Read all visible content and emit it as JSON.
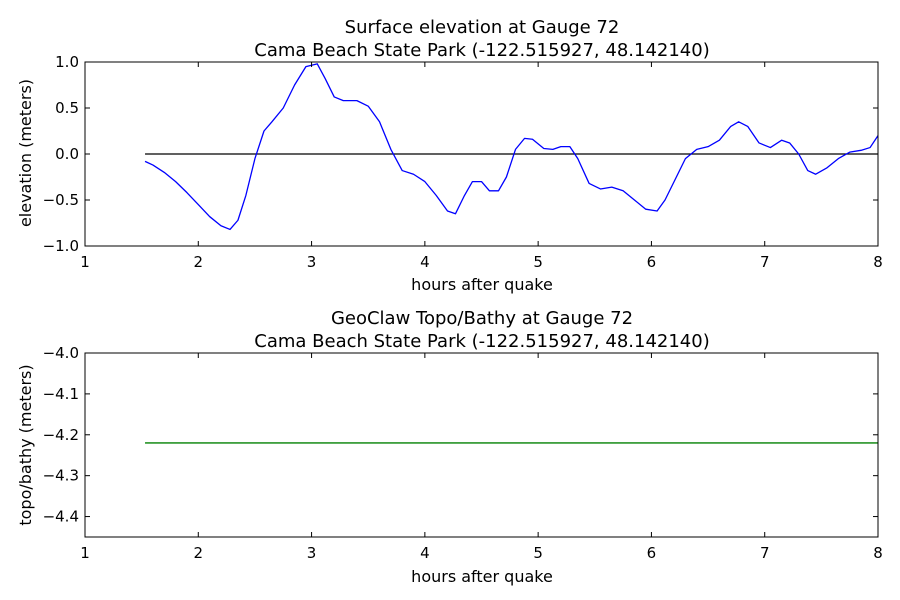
{
  "chart_data": [
    {
      "type": "line",
      "title_line1": "Surface elevation at Gauge 72",
      "title_line2": "Cama Beach State Park  (-122.515927, 48.142140)",
      "xlabel": "hours after quake",
      "ylabel": "elevation (meters)",
      "xlim": [
        1,
        8
      ],
      "ylim": [
        -1.0,
        1.0
      ],
      "xticks": [
        1,
        2,
        3,
        4,
        5,
        6,
        7,
        8
      ],
      "xtick_labels": [
        "1",
        "2",
        "3",
        "4",
        "5",
        "6",
        "7",
        "8"
      ],
      "yticks": [
        -1.0,
        -0.5,
        0.0,
        0.5,
        1.0
      ],
      "ytick_labels": [
        "−1.0",
        "−0.5",
        "0.0",
        "0.5",
        "1.0"
      ],
      "grid": false,
      "reference_line": {
        "y": 0.0,
        "x": [
          1.53,
          8.0
        ],
        "color": "#000000"
      },
      "series": [
        {
          "color": "#0000ff",
          "x": [
            1.53,
            1.6,
            1.7,
            1.8,
            1.9,
            2.0,
            2.1,
            2.2,
            2.28,
            2.35,
            2.42,
            2.5,
            2.58,
            2.65,
            2.75,
            2.85,
            2.95,
            3.05,
            3.12,
            3.2,
            3.28,
            3.4,
            3.5,
            3.6,
            3.7,
            3.8,
            3.9,
            4.0,
            4.1,
            4.2,
            4.27,
            4.35,
            4.42,
            4.5,
            4.57,
            4.65,
            4.72,
            4.8,
            4.88,
            4.95,
            5.05,
            5.13,
            5.2,
            5.28,
            5.35,
            5.45,
            5.55,
            5.65,
            5.75,
            5.85,
            5.95,
            6.05,
            6.12,
            6.2,
            6.3,
            6.4,
            6.5,
            6.6,
            6.7,
            6.77,
            6.85,
            6.95,
            7.05,
            7.15,
            7.22,
            7.3,
            7.38,
            7.45,
            7.55,
            7.65,
            7.75,
            7.85,
            7.93,
            8.0
          ],
          "y": [
            -0.08,
            -0.12,
            -0.2,
            -0.3,
            -0.42,
            -0.55,
            -0.68,
            -0.78,
            -0.82,
            -0.72,
            -0.45,
            -0.05,
            0.25,
            0.35,
            0.5,
            0.75,
            0.95,
            0.98,
            0.82,
            0.62,
            0.58,
            0.58,
            0.52,
            0.35,
            0.05,
            -0.18,
            -0.22,
            -0.3,
            -0.45,
            -0.62,
            -0.65,
            -0.45,
            -0.3,
            -0.3,
            -0.4,
            -0.4,
            -0.25,
            0.05,
            0.17,
            0.16,
            0.06,
            0.05,
            0.08,
            0.08,
            -0.05,
            -0.32,
            -0.38,
            -0.36,
            -0.4,
            -0.5,
            -0.6,
            -0.62,
            -0.5,
            -0.3,
            -0.05,
            0.05,
            0.08,
            0.15,
            0.3,
            0.35,
            0.3,
            0.12,
            0.07,
            0.15,
            0.12,
            0.0,
            -0.18,
            -0.22,
            -0.15,
            -0.05,
            0.02,
            0.04,
            0.07,
            0.2
          ]
        }
      ]
    },
    {
      "type": "line",
      "title_line1": "GeoClaw Topo/Bathy at Gauge 72",
      "title_line2": "Cama Beach State Park  (-122.515927, 48.142140)",
      "xlabel": "hours after quake",
      "ylabel": "topo/bathy (meters)",
      "xlim": [
        1,
        8
      ],
      "ylim": [
        -4.45,
        -4.0
      ],
      "xticks": [
        1,
        2,
        3,
        4,
        5,
        6,
        7,
        8
      ],
      "xtick_labels": [
        "1",
        "2",
        "3",
        "4",
        "5",
        "6",
        "7",
        "8"
      ],
      "yticks": [
        -4.4,
        -4.3,
        -4.2,
        -4.1,
        -4.0
      ],
      "ytick_labels": [
        "−4.4",
        "−4.3",
        "−4.2",
        "−4.1",
        "−4.0"
      ],
      "grid": false,
      "series": [
        {
          "color": "#008000",
          "x": [
            1.53,
            8.0
          ],
          "y": [
            -4.22,
            -4.22
          ]
        }
      ]
    }
  ]
}
